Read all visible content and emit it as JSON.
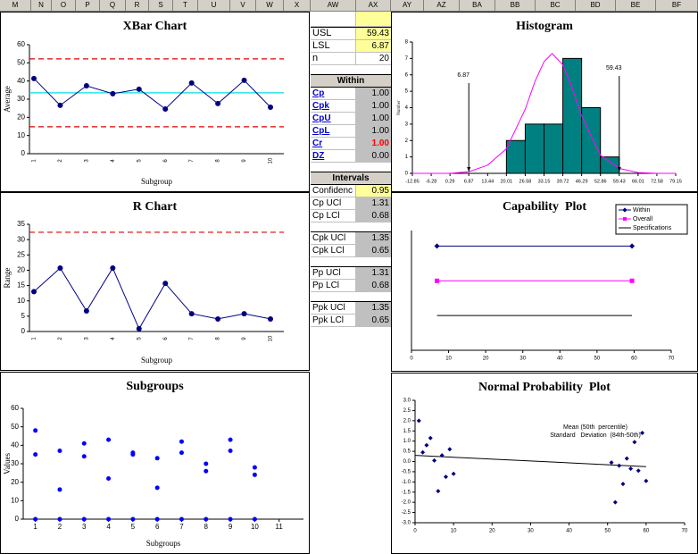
{
  "columns": [
    "M",
    "N",
    "O",
    "P",
    "Q",
    "R",
    "S",
    "T",
    "U",
    "V",
    "W",
    "X",
    "AW",
    "AX",
    "AY",
    "AZ",
    "BA",
    "BB",
    "BC",
    "BD",
    "BE",
    "BF"
  ],
  "table": {
    "groups": [
      {
        "rows": [
          [
            "USL",
            "59.43"
          ],
          [
            "LSL",
            "6.87"
          ],
          [
            "n",
            "20"
          ]
        ]
      },
      {
        "heading": "Within",
        "rows": [
          [
            "Cp",
            "1.00"
          ],
          [
            "Cpk",
            "1.00"
          ],
          [
            "CpU",
            "1.00"
          ],
          [
            "CpL",
            "1.00"
          ],
          [
            "Cr",
            "1.00"
          ],
          [
            "DZ",
            "0.00"
          ]
        ]
      },
      {
        "heading": "Intervals",
        "rows": [
          [
            "Confidenc",
            "0.95"
          ],
          [
            "Cp UCl",
            "1.31"
          ],
          [
            "Cp LCl",
            "0.68"
          ]
        ]
      },
      {
        "rows": [
          [
            "Cpk UCl",
            "1.35"
          ],
          [
            "Cpk LCl",
            "0.65"
          ]
        ]
      },
      {
        "rows": [
          [
            "Pp UCl",
            "1.31"
          ],
          [
            "Pp LCl",
            "0.68"
          ]
        ]
      },
      {
        "rows": [
          [
            "Ppk UCl",
            "1.35"
          ],
          [
            "Ppk LCl",
            "0.65"
          ]
        ]
      }
    ]
  },
  "chart_data": [
    {
      "type": "line",
      "title": "XBar Chart",
      "x_label": "Subgroup",
      "y_label": "Average",
      "categories": [
        "1",
        "2",
        "3",
        "4",
        "5",
        "6",
        "7",
        "8",
        "9",
        "10"
      ],
      "values": [
        41.4,
        26.6,
        37.4,
        33,
        35.5,
        24.6,
        38.9,
        27.6,
        40.4,
        25.6
      ],
      "color": "#000080",
      "ylim": [
        0,
        60
      ],
      "yticks": [
        0,
        10,
        20,
        30,
        40,
        50,
        60
      ],
      "reference_lines": [
        {
          "value": 52.2,
          "color": "#e00000",
          "style": "dashed"
        },
        {
          "value": 14.8,
          "color": "#e00000",
          "style": "dashed"
        },
        {
          "value": 33.5,
          "color": "#00e0e0",
          "style": "solid"
        }
      ]
    },
    {
      "type": "line",
      "title": "R Chart",
      "x_label": "Subgroup",
      "y_label": "Range",
      "categories": [
        "1",
        "2",
        "3",
        "4",
        "5",
        "6",
        "7",
        "8",
        "9",
        "10"
      ],
      "values": [
        13,
        20.7,
        6.7,
        20.7,
        0.9,
        15.7,
        5.8,
        4.1,
        5.8,
        4.1
      ],
      "color": "#000080",
      "ylim": [
        0,
        35
      ],
      "yticks": [
        0,
        5,
        10,
        15,
        20,
        25,
        30,
        35
      ],
      "reference_lines": [
        {
          "value": 32.4,
          "color": "#e00000",
          "style": "dashed"
        }
      ]
    },
    {
      "type": "scatter",
      "title": "Subgroups",
      "x_label": "Subgroups",
      "y_label": "Values",
      "color": "#0000ff",
      "x": [
        1,
        1,
        1,
        2,
        2,
        2,
        3,
        3,
        3,
        4,
        4,
        4,
        5,
        5,
        5,
        6,
        6,
        6,
        7,
        7,
        7,
        8,
        8,
        8,
        9,
        9,
        9,
        10,
        10,
        10
      ],
      "values": [
        48,
        35,
        0,
        37,
        16,
        0,
        41,
        34,
        0,
        43,
        22,
        0,
        36,
        35,
        0,
        33,
        17,
        0,
        42,
        36,
        0,
        30,
        26,
        0,
        43,
        37,
        0,
        28,
        24,
        0
      ],
      "xlim": [
        0.5,
        12
      ],
      "xticks": [
        1,
        2,
        3,
        4,
        5,
        6,
        7,
        8,
        9,
        10,
        11
      ],
      "ylim": [
        0,
        60
      ],
      "yticks": [
        0,
        10,
        20,
        30,
        40,
        50,
        60
      ]
    },
    {
      "type": "histogram",
      "title": "Histogram",
      "y_label": "Number",
      "color": "#008080",
      "bins": [
        20.01,
        26.58,
        33.15,
        39.72,
        46.29,
        52.86,
        59.43
      ],
      "counts": [
        2,
        3,
        3,
        7,
        4,
        1
      ],
      "curve": {
        "color": "#ff00ff",
        "x": [
          -12.85,
          0.29,
          6.87,
          13.44,
          20.01,
          26.58,
          30,
          33.15,
          36,
          39.72,
          43,
          46.29,
          52.86,
          59.43,
          66.01,
          72.58,
          79.15
        ],
        "y": [
          0,
          0,
          0.1,
          0.5,
          1.5,
          3.9,
          5.6,
          6.8,
          7.3,
          6.6,
          5.2,
          3.5,
          1.1,
          0.3,
          0.05,
          0,
          0
        ]
      },
      "annotations": [
        {
          "text": "6.87",
          "x": 6.87
        },
        {
          "text": "59.43",
          "x": 59.43
        }
      ],
      "xlim": [
        -12.85,
        79.15
      ],
      "xticks": [
        -12.85,
        -6.28,
        0.29,
        6.87,
        13.44,
        20.01,
        26.58,
        33.15,
        39.72,
        46.29,
        52.86,
        59.43,
        66.01,
        72.58,
        79.15
      ],
      "ylim": [
        0,
        8
      ],
      "yticks": [
        0,
        1,
        2,
        3,
        4,
        5,
        6,
        7,
        8
      ]
    },
    {
      "type": "line",
      "title": "Capability  Plot",
      "series": [
        {
          "name": "Within",
          "color": "#000080",
          "marker": "diamond",
          "values": [
            6.87,
            59.43
          ]
        },
        {
          "name": "Overall",
          "color": "#ff00ff",
          "marker": "square",
          "values": [
            6.87,
            59.43
          ]
        },
        {
          "name": "Specifications",
          "color": "#000000",
          "marker": "none",
          "values": [
            6.87,
            59.43
          ]
        }
      ],
      "xlim": [
        0,
        70
      ],
      "xticks": [
        0,
        10,
        20,
        30,
        40,
        50,
        60,
        70
      ]
    },
    {
      "type": "scatter",
      "title": "Normal Probability  Plot",
      "color": "#000080",
      "annotations": [
        {
          "text": "Mean (50th  percentile)"
        },
        {
          "text": "Standard   Deviation  (84th-50th)"
        }
      ],
      "x": [
        1,
        2,
        3,
        4,
        5,
        6,
        7,
        8,
        9,
        10,
        51,
        52,
        53,
        54,
        55,
        56,
        57,
        58,
        59,
        60
      ],
      "values": [
        2.0,
        0.45,
        0.8,
        1.15,
        0.05,
        -1.45,
        0.3,
        -0.75,
        0.6,
        -0.6,
        -0.05,
        -2.0,
        -0.2,
        -1.1,
        0.15,
        -0.35,
        0.95,
        -0.45,
        1.4,
        -0.95
      ],
      "trend_line": {
        "color": "#000000",
        "x": [
          0,
          60
        ],
        "values": [
          0.3,
          -0.25
        ]
      },
      "xlim": [
        0,
        70
      ],
      "xticks": [
        0,
        10,
        20,
        30,
        40,
        50,
        60,
        70
      ],
      "ylim": [
        -3,
        3
      ],
      "yticks": [
        {
          "value": -3,
          "label": "-3.0"
        },
        -2.5,
        {
          "value": -2,
          "label": "-2.0"
        },
        -1.5,
        {
          "value": -1,
          "label": "-1.0"
        },
        -0.5,
        {
          "value": 0,
          "label": "0.0"
        },
        0.5,
        {
          "value": 1,
          "label": "1.0"
        },
        1.5,
        {
          "value": 2,
          "label": "2.0"
        },
        2.5,
        {
          "value": 3,
          "label": "3.0"
        }
      ]
    }
  ]
}
